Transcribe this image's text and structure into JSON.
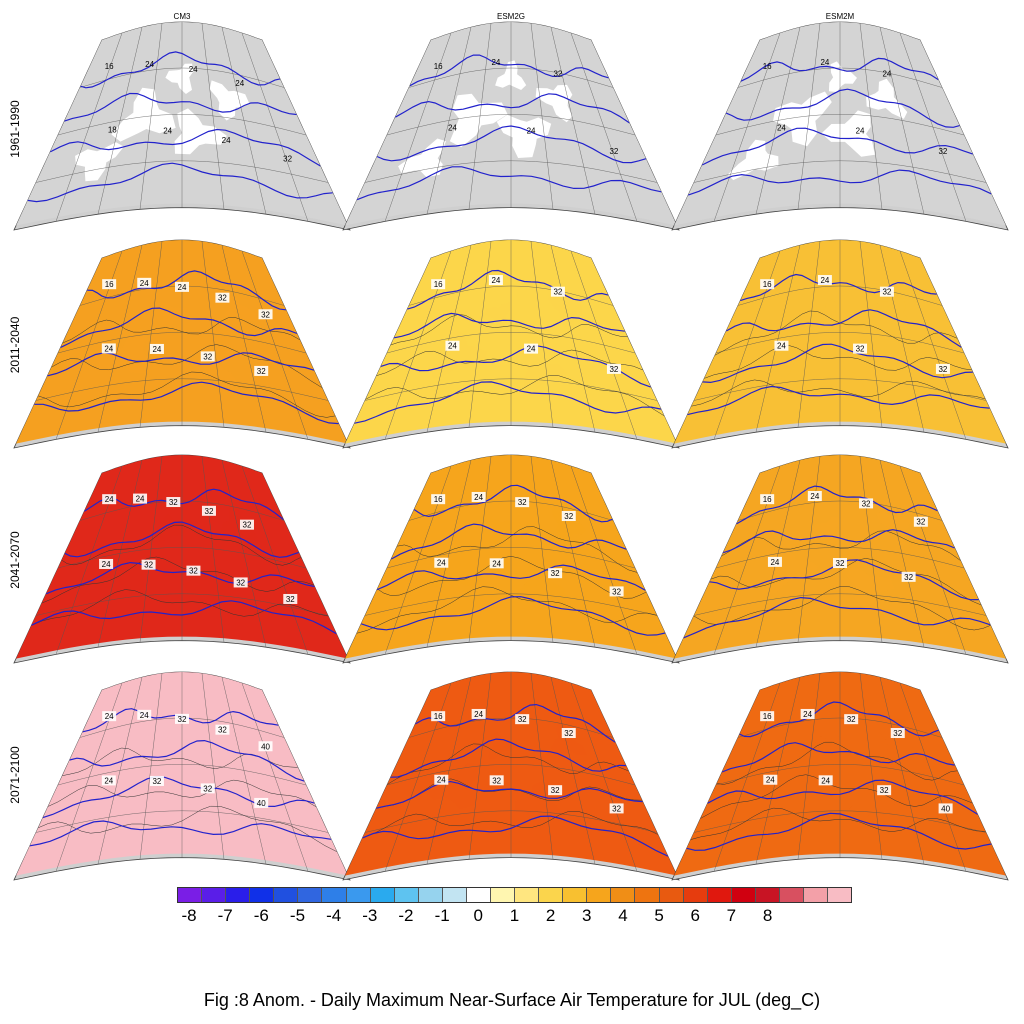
{
  "columns": [
    "CM3",
    "ESM2G",
    "ESM2M"
  ],
  "rows": [
    "1961-1990",
    "2011-2040",
    "2041-2070",
    "2071-2100"
  ],
  "caption": "Fig :8  Anom.  - Daily Maximum Near-Surface Air Temperature for JUL (deg_C)",
  "colorbar": {
    "ticks": [
      "-8",
      "-7",
      "-6",
      "-5",
      "-4",
      "-3",
      "-2",
      "-1",
      "0",
      "1",
      "2",
      "3",
      "4",
      "5",
      "6",
      "7",
      "8"
    ],
    "colors": [
      "#7a1ee6",
      "#5a1ee8",
      "#2a1eea",
      "#1030e8",
      "#2050e0",
      "#3066e0",
      "#2e7fe8",
      "#3a99ee",
      "#2aaaee",
      "#5ec3f0",
      "#96d3ee",
      "#c2e4f2",
      "#ffffff",
      "#fff6b0",
      "#ffe680",
      "#fbd54c",
      "#f8c030",
      "#f6a51c",
      "#f08e16",
      "#ee7410",
      "#e85a10",
      "#e63c0e",
      "#e0180e",
      "#d00010",
      "#c81424",
      "#d85060",
      "#f3a0a8",
      "#f8bcc4"
    ]
  },
  "panels": [
    {
      "row": 0,
      "col": 0,
      "fill": "#ffffff",
      "land": true,
      "labels": [
        "16",
        "18",
        "24",
        "24",
        "24",
        "24",
        "24",
        "32"
      ]
    },
    {
      "row": 0,
      "col": 1,
      "fill": "#ffffff",
      "land": true,
      "labels": [
        "16",
        "24",
        "24",
        "24",
        "32",
        "32"
      ]
    },
    {
      "row": 0,
      "col": 2,
      "fill": "#ffffff",
      "land": true,
      "labels": [
        "16",
        "24",
        "24",
        "24",
        "24",
        "32"
      ]
    },
    {
      "row": 1,
      "col": 0,
      "fill": "#f5a020",
      "land": false,
      "labels": [
        "16",
        "24",
        "24",
        "24",
        "24",
        "32",
        "32",
        "32",
        "32"
      ]
    },
    {
      "row": 1,
      "col": 1,
      "fill": "#fcd64a",
      "land": false,
      "labels": [
        "16",
        "24",
        "24",
        "24",
        "32",
        "32"
      ]
    },
    {
      "row": 1,
      "col": 2,
      "fill": "#f8c035",
      "land": false,
      "labels": [
        "16",
        "24",
        "24",
        "32",
        "32",
        "32"
      ]
    },
    {
      "row": 2,
      "col": 0,
      "fill": "#e0281a",
      "land": false,
      "labels": [
        "24",
        "24",
        "24",
        "32",
        "32",
        "32",
        "32",
        "32",
        "32",
        "32"
      ]
    },
    {
      "row": 2,
      "col": 1,
      "fill": "#f6a51c",
      "land": false,
      "labels": [
        "16",
        "24",
        "24",
        "24",
        "32",
        "32",
        "32",
        "32"
      ]
    },
    {
      "row": 2,
      "col": 2,
      "fill": "#f5a622",
      "land": false,
      "labels": [
        "16",
        "24",
        "24",
        "32",
        "32",
        "32",
        "32"
      ]
    },
    {
      "row": 3,
      "col": 0,
      "fill": "#f8bcc4",
      "land": false,
      "labels": [
        "24",
        "24",
        "24",
        "32",
        "32",
        "32",
        "32",
        "40",
        "40"
      ]
    },
    {
      "row": 3,
      "col": 1,
      "fill": "#ee5a12",
      "land": false,
      "labels": [
        "16",
        "24",
        "24",
        "32",
        "32",
        "32",
        "32",
        "32"
      ]
    },
    {
      "row": 3,
      "col": 2,
      "fill": "#ef6a12",
      "land": false,
      "labels": [
        "16",
        "24",
        "24",
        "24",
        "32",
        "32",
        "32",
        "40"
      ]
    }
  ]
}
